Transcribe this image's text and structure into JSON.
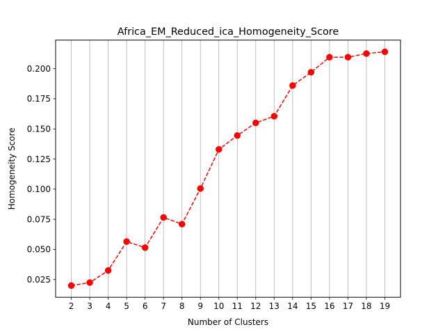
{
  "chart_data": {
    "type": "line",
    "title": "Africa_EM_Reduced_ica_Homogeneity_Score",
    "xlabel": "Number of Clusters",
    "ylabel": "Homogeneity Score",
    "x": [
      2,
      3,
      4,
      5,
      6,
      7,
      8,
      9,
      10,
      11,
      12,
      13,
      14,
      15,
      16,
      17,
      18,
      19
    ],
    "series": [
      {
        "values": [
          0.02,
          0.0225,
          0.0325,
          0.0565,
          0.0515,
          0.0765,
          0.071,
          0.1005,
          0.133,
          0.1445,
          0.155,
          0.1605,
          0.186,
          0.197,
          0.2095,
          0.2095,
          0.2125,
          0.214
        ],
        "color": "#ff0000",
        "line_style": "dashed",
        "marker": "circle"
      }
    ],
    "xlim": [
      1.15,
      19.85
    ],
    "ylim": [
      0.0103,
      0.2237
    ],
    "x_ticks": [
      "2",
      "3",
      "4",
      "5",
      "6",
      "7",
      "8",
      "9",
      "10",
      "11",
      "12",
      "13",
      "14",
      "15",
      "16",
      "17",
      "18",
      "19"
    ],
    "y_ticks": [
      "0.025",
      "0.050",
      "0.075",
      "0.100",
      "0.125",
      "0.150",
      "0.175",
      "0.200"
    ],
    "grid": "vertical",
    "legend": "none"
  }
}
